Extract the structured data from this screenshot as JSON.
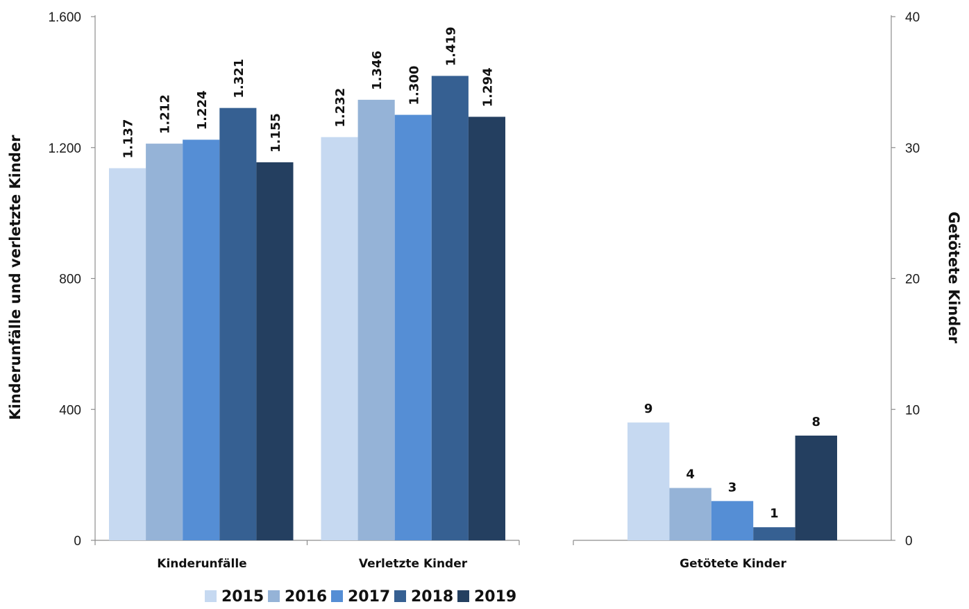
{
  "chart_data": [
    {
      "type": "bar",
      "axis": "left",
      "categories": [
        "Kinderunfälle",
        "Verletzte Kinder"
      ],
      "series": [
        {
          "name": "2015",
          "values": [
            1137,
            1232
          ],
          "labels": [
            "1.137",
            "1.232"
          ],
          "color": "#c6d9f1"
        },
        {
          "name": "2016",
          "values": [
            1212,
            1346
          ],
          "labels": [
            "1.212",
            "1.346"
          ],
          "color": "#95b3d7"
        },
        {
          "name": "2017",
          "values": [
            1224,
            1300
          ],
          "labels": [
            "1.224",
            "1.300"
          ],
          "color": "#558ed5"
        },
        {
          "name": "2018",
          "values": [
            1321,
            1419
          ],
          "labels": [
            "1.321",
            "1.419"
          ],
          "color": "#366092"
        },
        {
          "name": "2019",
          "values": [
            1155,
            1294
          ],
          "labels": [
            "1.155",
            "1.294"
          ],
          "color": "#243f60"
        }
      ],
      "ylabel": "Kinderunfälle und verletzte Kinder",
      "ylim": [
        0,
        1600
      ],
      "yticks": [
        0,
        400,
        800,
        1200,
        1600
      ],
      "ytick_labels": [
        "0",
        "400",
        "800",
        "1.200",
        "1.600"
      ],
      "grid": false,
      "data_label_orientation": "vertical"
    },
    {
      "type": "bar",
      "axis": "right",
      "categories": [
        "Getötete Kinder"
      ],
      "series": [
        {
          "name": "2015",
          "values": [
            9
          ],
          "labels": [
            "9"
          ],
          "color": "#c6d9f1"
        },
        {
          "name": "2016",
          "values": [
            4
          ],
          "labels": [
            "4"
          ],
          "color": "#95b3d7"
        },
        {
          "name": "2017",
          "values": [
            3
          ],
          "labels": [
            "3"
          ],
          "color": "#558ed5"
        },
        {
          "name": "2018",
          "values": [
            1
          ],
          "labels": [
            "1"
          ],
          "color": "#366092"
        },
        {
          "name": "2019",
          "values": [
            8
          ],
          "labels": [
            "8"
          ],
          "color": "#243f60"
        }
      ],
      "ylabel": "Getötete Kinder",
      "ylim": [
        0,
        40
      ],
      "yticks": [
        0,
        10,
        20,
        30,
        40
      ],
      "ytick_labels": [
        "0",
        "10",
        "20",
        "30",
        "40"
      ],
      "grid": false,
      "data_label_orientation": "horizontal"
    }
  ],
  "legend": {
    "placement": "bottom-center",
    "items": [
      {
        "label": "2015",
        "color": "#c6d9f1"
      },
      {
        "label": "2016",
        "color": "#95b3d7"
      },
      {
        "label": "2017",
        "color": "#558ed5"
      },
      {
        "label": "2018",
        "color": "#366092"
      },
      {
        "label": "2019",
        "color": "#243f60"
      }
    ]
  }
}
